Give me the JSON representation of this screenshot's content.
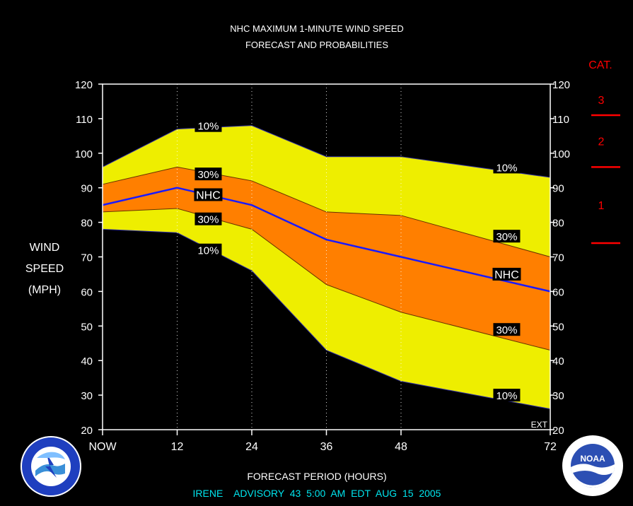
{
  "title_line1": "NHC MAXIMUM 1-MINUTE WIND SPEED",
  "title_line2": "FORECAST AND PROBABILITIES",
  "ylabel": [
    "WIND",
    "SPEED",
    "(MPH)"
  ],
  "xlabel": "FORECAST PERIOD (HOURS)",
  "advisory": "IRENE    ADVISORY  43  5:00  AM  EDT  AUG  15  2005",
  "ext_label": "EXT",
  "cat_title": "CAT.",
  "categories": [
    {
      "label": "3",
      "value": 111
    },
    {
      "label": "2",
      "value": 96
    },
    {
      "label": "1",
      "value": 74
    }
  ],
  "logos": {
    "left": "nws-logo",
    "right": "noaa-logo",
    "noaa_text": "NOAA"
  },
  "colors": {
    "background": "#000000",
    "outer_band": "#eeee00",
    "inner_band": "#ff7f00",
    "nhc_line": "#1a1aff",
    "category_red": "#ff0000",
    "advisory_text": "#00e5ee",
    "ext_red_band": "#ff0000"
  },
  "chart_data": {
    "type": "area",
    "title": "NHC MAXIMUM 1-MINUTE WIND SPEED FORECAST AND PROBABILITIES",
    "xlabel": "FORECAST PERIOD (HOURS)",
    "ylabel": "WIND SPEED (MPH)",
    "ylim": [
      20,
      120
    ],
    "xlim": [
      0,
      72
    ],
    "x_ticks": [
      0,
      12,
      24,
      36,
      48,
      72
    ],
    "x_tick_labels": [
      "NOW",
      "12",
      "24",
      "36",
      "48",
      "72"
    ],
    "y_ticks": [
      20,
      30,
      40,
      50,
      60,
      70,
      80,
      90,
      100,
      110,
      120
    ],
    "x": [
      0,
      12,
      24,
      36,
      48,
      72
    ],
    "series": [
      {
        "name": "10%",
        "role": "upper_10",
        "values": [
          96,
          107,
          108,
          99,
          99,
          93
        ]
      },
      {
        "name": "30%",
        "role": "upper_30",
        "values": [
          91,
          96,
          92,
          83,
          82,
          70
        ]
      },
      {
        "name": "NHC",
        "role": "nhc",
        "values": [
          85,
          90,
          85,
          75,
          70,
          60
        ]
      },
      {
        "name": "30%",
        "role": "lower_30",
        "values": [
          83,
          84,
          78,
          62,
          54,
          43
        ]
      },
      {
        "name": "10%",
        "role": "lower_10",
        "values": [
          78,
          77,
          66,
          43,
          34,
          26
        ]
      }
    ],
    "annotations": [
      {
        "text": "10%",
        "x": 17,
        "y": 108
      },
      {
        "text": "30%",
        "x": 17,
        "y": 94
      },
      {
        "text": "NHC",
        "x": 17,
        "y": 88
      },
      {
        "text": "30%",
        "x": 17,
        "y": 81
      },
      {
        "text": "10%",
        "x": 17,
        "y": 72
      },
      {
        "text": "10%",
        "x": 65,
        "y": 96
      },
      {
        "text": "30%",
        "x": 65,
        "y": 76
      },
      {
        "text": "NHC",
        "x": 65,
        "y": 65
      },
      {
        "text": "30%",
        "x": 65,
        "y": 49
      },
      {
        "text": "10%",
        "x": 65,
        "y": 30
      }
    ],
    "grid": "vertical dotted",
    "legend": "none"
  }
}
